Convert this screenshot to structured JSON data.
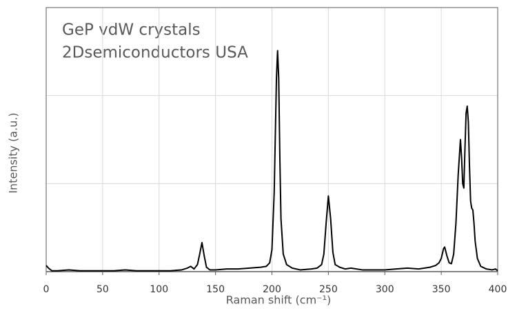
{
  "chart_data": {
    "type": "line",
    "annotations": [
      "GeP vdW crystals",
      "2Dsemiconductors USA"
    ],
    "x_label": "Raman shift (cm⁻¹)",
    "y_label": "Intensity (a.u.)",
    "x": [
      0,
      2,
      5,
      10,
      20,
      30,
      40,
      50,
      60,
      70,
      80,
      90,
      100,
      110,
      120,
      125,
      128,
      131,
      134,
      136,
      138,
      140,
      142,
      145,
      150,
      160,
      170,
      180,
      190,
      195,
      198,
      200,
      202,
      204,
      205,
      206,
      207,
      208,
      210,
      213,
      218,
      225,
      235,
      240,
      244,
      246,
      248,
      250,
      252,
      254,
      256,
      260,
      265,
      270,
      280,
      290,
      300,
      310,
      320,
      330,
      340,
      345,
      348,
      350,
      352,
      353,
      355,
      357,
      359,
      361,
      363,
      365,
      367,
      368,
      369,
      370,
      371,
      372,
      373,
      374,
      375,
      376,
      377,
      378,
      379,
      380,
      382,
      385,
      390,
      395,
      398,
      400
    ],
    "series": [
      {
        "color": "#000000",
        "values": [
          0.07,
          0.04,
          0.01,
          0.01,
          0.02,
          0.01,
          0.01,
          0.01,
          0.01,
          0.02,
          0.01,
          0.01,
          0.01,
          0.01,
          0.02,
          0.04,
          0.06,
          0.03,
          0.08,
          0.2,
          0.33,
          0.18,
          0.05,
          0.02,
          0.02,
          0.03,
          0.03,
          0.04,
          0.05,
          0.06,
          0.1,
          0.25,
          0.9,
          2.2,
          2.51,
          2.2,
          1.3,
          0.6,
          0.2,
          0.08,
          0.04,
          0.02,
          0.03,
          0.04,
          0.08,
          0.2,
          0.55,
          0.86,
          0.6,
          0.22,
          0.08,
          0.05,
          0.03,
          0.04,
          0.02,
          0.02,
          0.02,
          0.03,
          0.04,
          0.03,
          0.05,
          0.07,
          0.1,
          0.15,
          0.26,
          0.28,
          0.18,
          0.1,
          0.09,
          0.2,
          0.55,
          1.1,
          1.5,
          1.3,
          1.0,
          0.95,
          1.4,
          1.8,
          1.88,
          1.7,
          1.2,
          0.8,
          0.72,
          0.7,
          0.55,
          0.35,
          0.15,
          0.06,
          0.03,
          0.02,
          0.03,
          0.01
        ]
      }
    ],
    "xlim": [
      0,
      400
    ],
    "xticks": [
      0,
      50,
      100,
      150,
      200,
      250,
      300,
      350,
      400
    ],
    "ylim": [
      0,
      3
    ],
    "yticks": [
      0,
      1,
      2,
      3
    ],
    "ytick_labels": false,
    "grid": true
  }
}
